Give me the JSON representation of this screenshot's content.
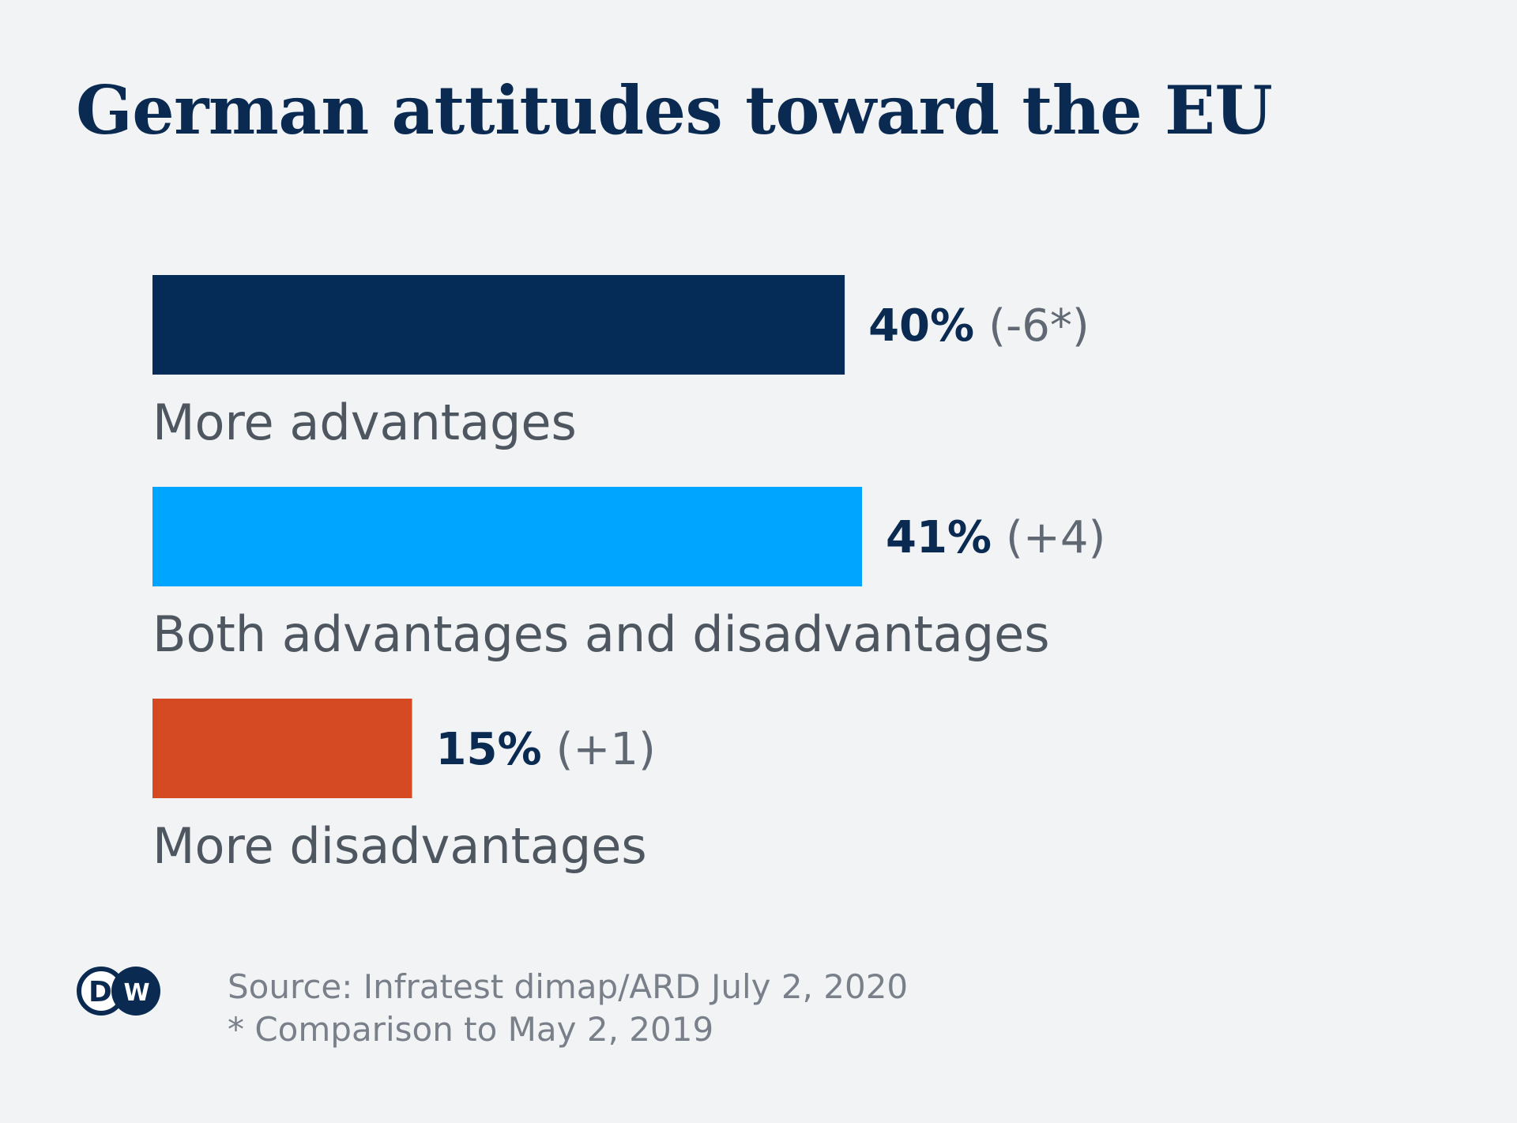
{
  "chart_data": {
    "type": "bar",
    "orientation": "horizontal",
    "title": "German attitudes toward the EU",
    "unit": "%",
    "categories": [
      "More advantages",
      "Both advantages and disadvantages",
      "More disadvantages"
    ],
    "values": [
      40,
      41,
      15
    ],
    "value_labels": [
      "40%",
      "41%",
      "15%"
    ],
    "changes": [
      "(-6*)",
      "(+4)",
      "(+1)"
    ],
    "colors": [
      "#052c57",
      "#00a5ff",
      "#d54a22"
    ],
    "xlim": [
      0,
      41
    ],
    "grid": false,
    "legend": "none",
    "source": "Source: Infratest dimap/ARD July 2, 2020",
    "footnote": "* Comparison to May 2, 2019"
  },
  "logo": {
    "text": "DW",
    "name": "dw-logo",
    "color": "#0a2a52"
  }
}
